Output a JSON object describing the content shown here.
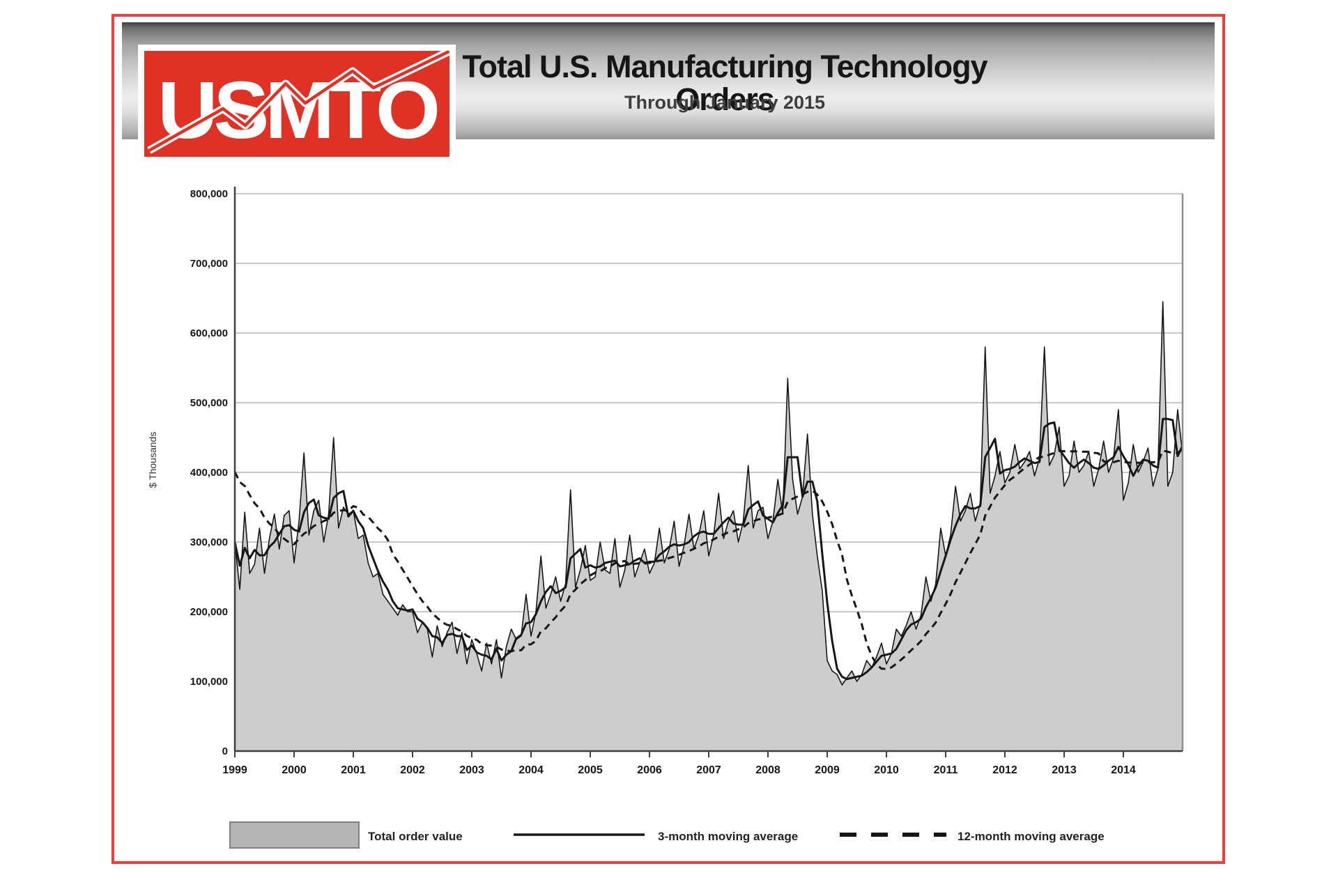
{
  "header": {
    "logo_text": "USMTO",
    "title": "Total U.S. Manufacturing Technology Orders",
    "subtitle": "Through January 2015"
  },
  "colors": {
    "frame_red": "#e8423a",
    "logo_red": "#df3227",
    "area_fill": "#cdcdcd",
    "line_black": "#161616",
    "grid_gray": "#a8a8a8",
    "axis_dark": "#3f3f3f",
    "right_border": "#8e8e8e",
    "swatch_gray": "#b5b5b5",
    "swatch_border": "#7f7f7f"
  },
  "y_axis": {
    "unit_label": "$ Thousands",
    "ticks": [
      {
        "value": 0,
        "label": "0"
      },
      {
        "value": 100000,
        "label": "100,000"
      },
      {
        "value": 200000,
        "label": "200,000"
      },
      {
        "value": 300000,
        "label": "300,000"
      },
      {
        "value": 400000,
        "label": "400,000"
      },
      {
        "value": 500000,
        "label": "500,000"
      },
      {
        "value": 600000,
        "label": "600,000"
      },
      {
        "value": 700000,
        "label": "700,000"
      },
      {
        "value": 800000,
        "label": "800,000"
      }
    ]
  },
  "x_axis": {
    "years": [
      1999,
      2000,
      2001,
      2002,
      2003,
      2004,
      2005,
      2006,
      2007,
      2008,
      2009,
      2010,
      2011,
      2012,
      2013,
      2014
    ]
  },
  "legend": [
    {
      "label": "Total order value",
      "style": "area-swatch"
    },
    {
      "label": "3-month moving average",
      "style": "solid-line"
    },
    {
      "label": "12-month moving average",
      "style": "dashed-line"
    }
  ],
  "chart_data": {
    "type": "area",
    "title": "Total U.S. Manufacturing Technology Orders",
    "subtitle": "Through January 2015",
    "xlabel": "",
    "ylabel": "$ Thousands",
    "ylim": [
      0,
      800000
    ],
    "grid": true,
    "x_range": {
      "start": "1999-01",
      "end": "2015-01",
      "interval": "monthly"
    },
    "monthly_values": [
      300000,
      232000,
      343000,
      255000,
      268000,
      320000,
      255000,
      305000,
      340000,
      290000,
      338000,
      345000,
      270000,
      330000,
      428000,
      310000,
      345000,
      360000,
      300000,
      340000,
      450000,
      320000,
      350000,
      340000,
      345000,
      305000,
      310000,
      270000,
      250000,
      255000,
      225000,
      215000,
      205000,
      195000,
      210000,
      200000,
      200000,
      170000,
      185000,
      175000,
      135000,
      180000,
      150000,
      170000,
      185000,
      140000,
      170000,
      125000,
      160000,
      140000,
      115000,
      155000,
      125000,
      160000,
      105000,
      150000,
      175000,
      160000,
      165000,
      225000,
      165000,
      200000,
      280000,
      205000,
      225000,
      250000,
      215000,
      240000,
      375000,
      235000,
      260000,
      295000,
      245000,
      250000,
      300000,
      260000,
      255000,
      305000,
      235000,
      260000,
      310000,
      250000,
      270000,
      290000,
      255000,
      270000,
      320000,
      270000,
      290000,
      330000,
      265000,
      295000,
      340000,
      290000,
      310000,
      345000,
      280000,
      310000,
      370000,
      305000,
      330000,
      345000,
      300000,
      330000,
      410000,
      320000,
      345000,
      350000,
      305000,
      330000,
      390000,
      340000,
      535000,
      390000,
      340000,
      365000,
      455000,
      340000,
      280000,
      230000,
      130000,
      115000,
      110000,
      95000,
      105000,
      115000,
      100000,
      110000,
      130000,
      120000,
      135000,
      155000,
      125000,
      140000,
      175000,
      165000,
      180000,
      200000,
      175000,
      195000,
      250000,
      215000,
      240000,
      320000,
      280000,
      310000,
      380000,
      330000,
      345000,
      370000,
      330000,
      355000,
      580000,
      370000,
      395000,
      430000,
      385000,
      400000,
      440000,
      405000,
      415000,
      430000,
      395000,
      420000,
      580000,
      410000,
      425000,
      465000,
      380000,
      395000,
      445000,
      400000,
      410000,
      430000,
      380000,
      405000,
      445000,
      400000,
      420000,
      490000,
      360000,
      385000,
      440000,
      400000,
      415000,
      435000,
      380000,
      405000,
      645000,
      380000,
      400000,
      490000,
      425000
    ],
    "series": [
      {
        "name": "Total order value",
        "type": "area"
      },
      {
        "name": "3-month moving average",
        "type": "line",
        "derived": "trailing 3-month mean of monthly_values"
      },
      {
        "name": "12-month moving average",
        "type": "line",
        "dashed": true,
        "derived": "trailing 12-month mean of monthly_values",
        "lead_in_value_jan_1999": 410000
      }
    ],
    "legend_position": "bottom"
  }
}
